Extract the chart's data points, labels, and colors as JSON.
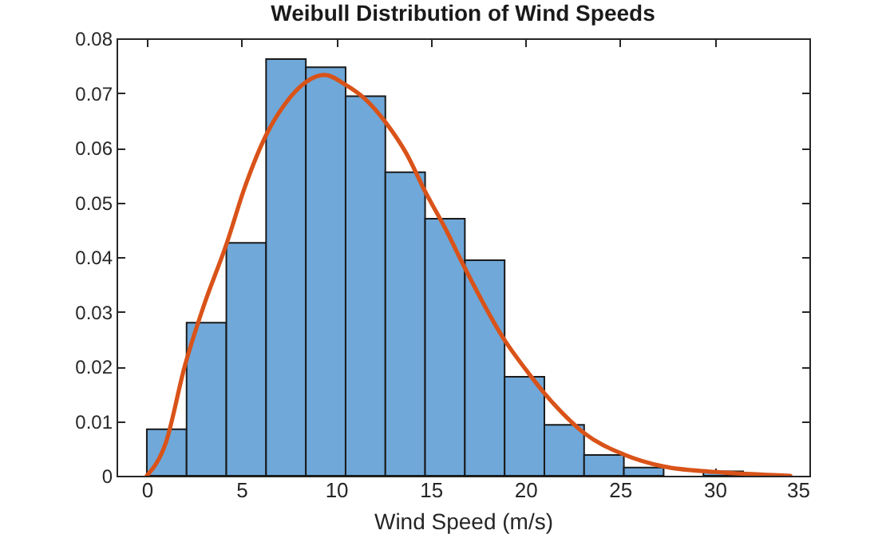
{
  "chart_data": {
    "type": "histogram",
    "title": "Weibull Distribution of Wind Speeds",
    "xlabel": "Wind Speed (m/s)",
    "bins": [
      0,
      2.1,
      4.2,
      6.3,
      8.4,
      10.5,
      12.6,
      14.7,
      16.8,
      18.9,
      21,
      23.1,
      25.2,
      27.3,
      29.4,
      31.5
    ],
    "values": [
      0.0085,
      0.028,
      0.0426,
      0.0762,
      0.0747,
      0.0694,
      0.0555,
      0.047,
      0.0394,
      0.0181,
      0.0093,
      0.0038,
      0.0015,
      0,
      0.0008
    ],
    "color": "#6fa8d9",
    "series": [
      {
        "type": "line",
        "color": "#d95319",
        "x": [
          0,
          1,
          2,
          3,
          4.2,
          5.2,
          6.3,
          7.3,
          8.4,
          9.4,
          10.5,
          11.5,
          12.6,
          13.7,
          14.7,
          15.8,
          16.8,
          18.9,
          20,
          21,
          22,
          23.1,
          25.2,
          27.3,
          30,
          34
        ],
        "values": [
          0,
          0.006,
          0.02,
          0.031,
          0.0423,
          0.053,
          0.0623,
          0.068,
          0.072,
          0.0733,
          0.0715,
          0.069,
          0.0647,
          0.059,
          0.052,
          0.045,
          0.038,
          0.0248,
          0.0195,
          0.0151,
          0.0113,
          0.0078,
          0.0039,
          0.0017,
          0.0007,
          0
        ]
      }
    ],
    "xlim": [
      -1.6,
      35
    ],
    "xticks": [
      0,
      5,
      10,
      15,
      20,
      25,
      30,
      35
    ],
    "ylim": [
      0,
      0.08
    ],
    "yticks": [
      0,
      0.01,
      0.02,
      0.03,
      0.04,
      0.05,
      0.06,
      0.07,
      0.08
    ]
  }
}
